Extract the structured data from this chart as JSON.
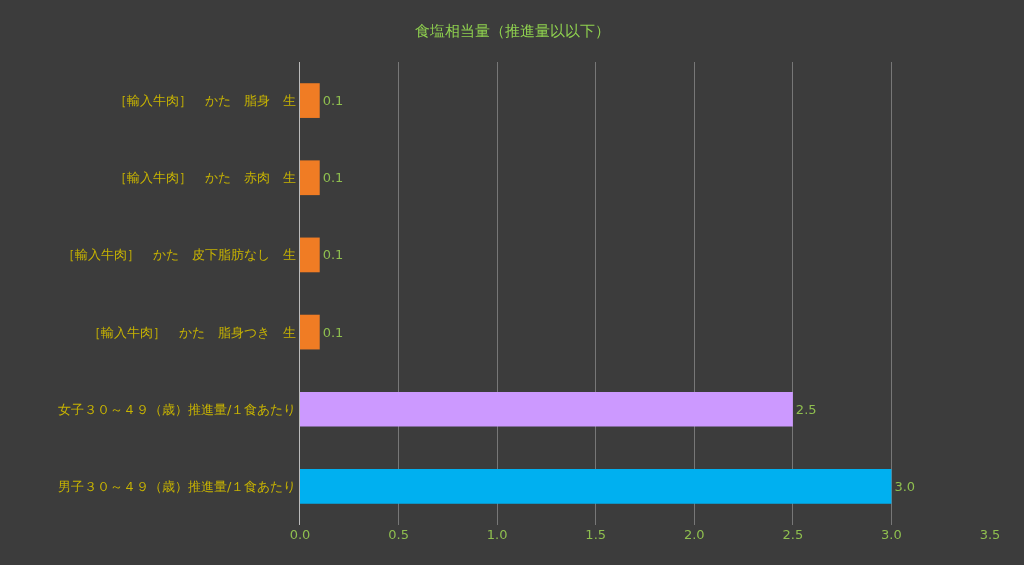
{
  "chart_data": {
    "type": "bar",
    "orientation": "horizontal",
    "title": "食塩相当量（推進量以以下）",
    "categories": [
      "［輸入牛肉］　かた　脂身　生",
      "［輸入牛肉］　かた　赤肉　生",
      "［輸入牛肉］　かた　皮下脂肪なし　生",
      "［輸入牛肉］　かた　脂身つき　生",
      "女子３０～４９（歳）推進量/１食あたり",
      "男子３０～４９（歳）推進量/１食あたり"
    ],
    "values": [
      0.1,
      0.1,
      0.1,
      0.1,
      2.5,
      3.0
    ],
    "colors": [
      "#f07c24",
      "#f07c24",
      "#f07c24",
      "#f07c24",
      "#cc99ff",
      "#00b0f0"
    ],
    "value_labels": [
      "0.1",
      "0.1",
      "0.1",
      "0.1",
      "2.5",
      "3.0"
    ],
    "xlim": [
      0,
      3.5
    ],
    "xticks": [
      {
        "value": 0,
        "label": "0.0"
      },
      {
        "value": 0.5,
        "label": "0.5"
      },
      {
        "value": 1,
        "label": "1.0"
      },
      {
        "value": 1.5,
        "label": "1.5"
      },
      {
        "value": 2,
        "label": "2.0"
      },
      {
        "value": 2.5,
        "label": "2.5"
      },
      {
        "value": 3,
        "label": "3.0"
      },
      {
        "value": 3.5,
        "label": "3.5"
      }
    ],
    "grid": "x"
  }
}
